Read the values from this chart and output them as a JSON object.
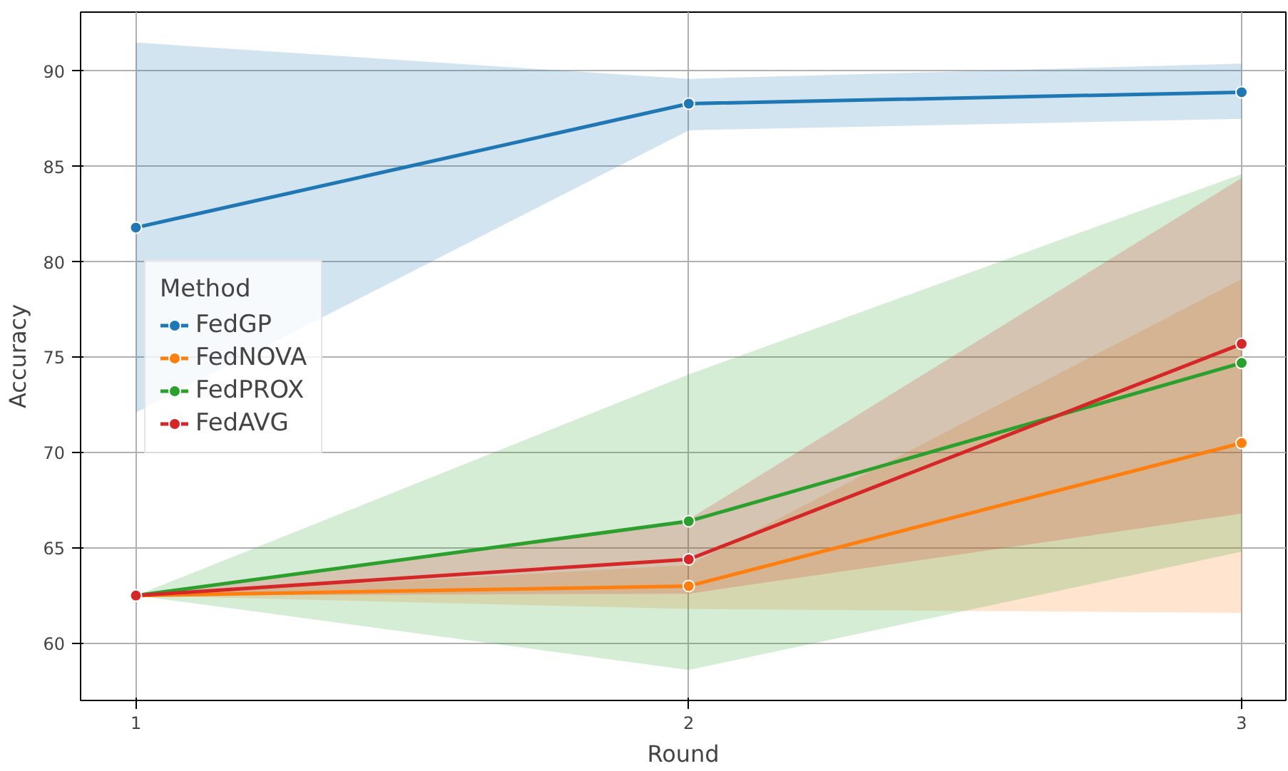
{
  "chart_data": {
    "type": "line",
    "xlabel": "Round",
    "ylabel": "Accuracy",
    "legend_title": "Method",
    "legend": "left",
    "grid": true,
    "marker": "circle",
    "line_style": "solid",
    "x": [
      1,
      2,
      3
    ],
    "xlim": [
      0.9,
      3.08
    ],
    "xticks": [
      1,
      2,
      3
    ],
    "ylim": [
      57.0,
      93.1
    ],
    "yticks": [
      60,
      65,
      70,
      75,
      80,
      85,
      90
    ],
    "series": [
      {
        "name": "FedGP",
        "color": "#1f77b4",
        "values": [
          81.8,
          88.3,
          88.9
        ],
        "lower": [
          72.1,
          86.9,
          87.5
        ],
        "upper": [
          91.5,
          89.6,
          90.4
        ]
      },
      {
        "name": "FedNOVA",
        "color": "#ff7f0e",
        "values": [
          62.5,
          63.0,
          70.5
        ],
        "lower": [
          62.5,
          61.8,
          61.6
        ],
        "upper": [
          62.5,
          64.1,
          79.1
        ]
      },
      {
        "name": "FedPROX",
        "color": "#2ca02c",
        "values": [
          62.5,
          66.4,
          74.7
        ],
        "lower": [
          62.5,
          58.6,
          64.8
        ],
        "upper": [
          62.5,
          74.1,
          84.6
        ]
      },
      {
        "name": "FedAVG",
        "color": "#d62728",
        "values": [
          62.5,
          64.4,
          75.7
        ],
        "lower": [
          62.5,
          62.6,
          66.8
        ],
        "upper": [
          62.5,
          66.5,
          84.4
        ]
      }
    ]
  }
}
